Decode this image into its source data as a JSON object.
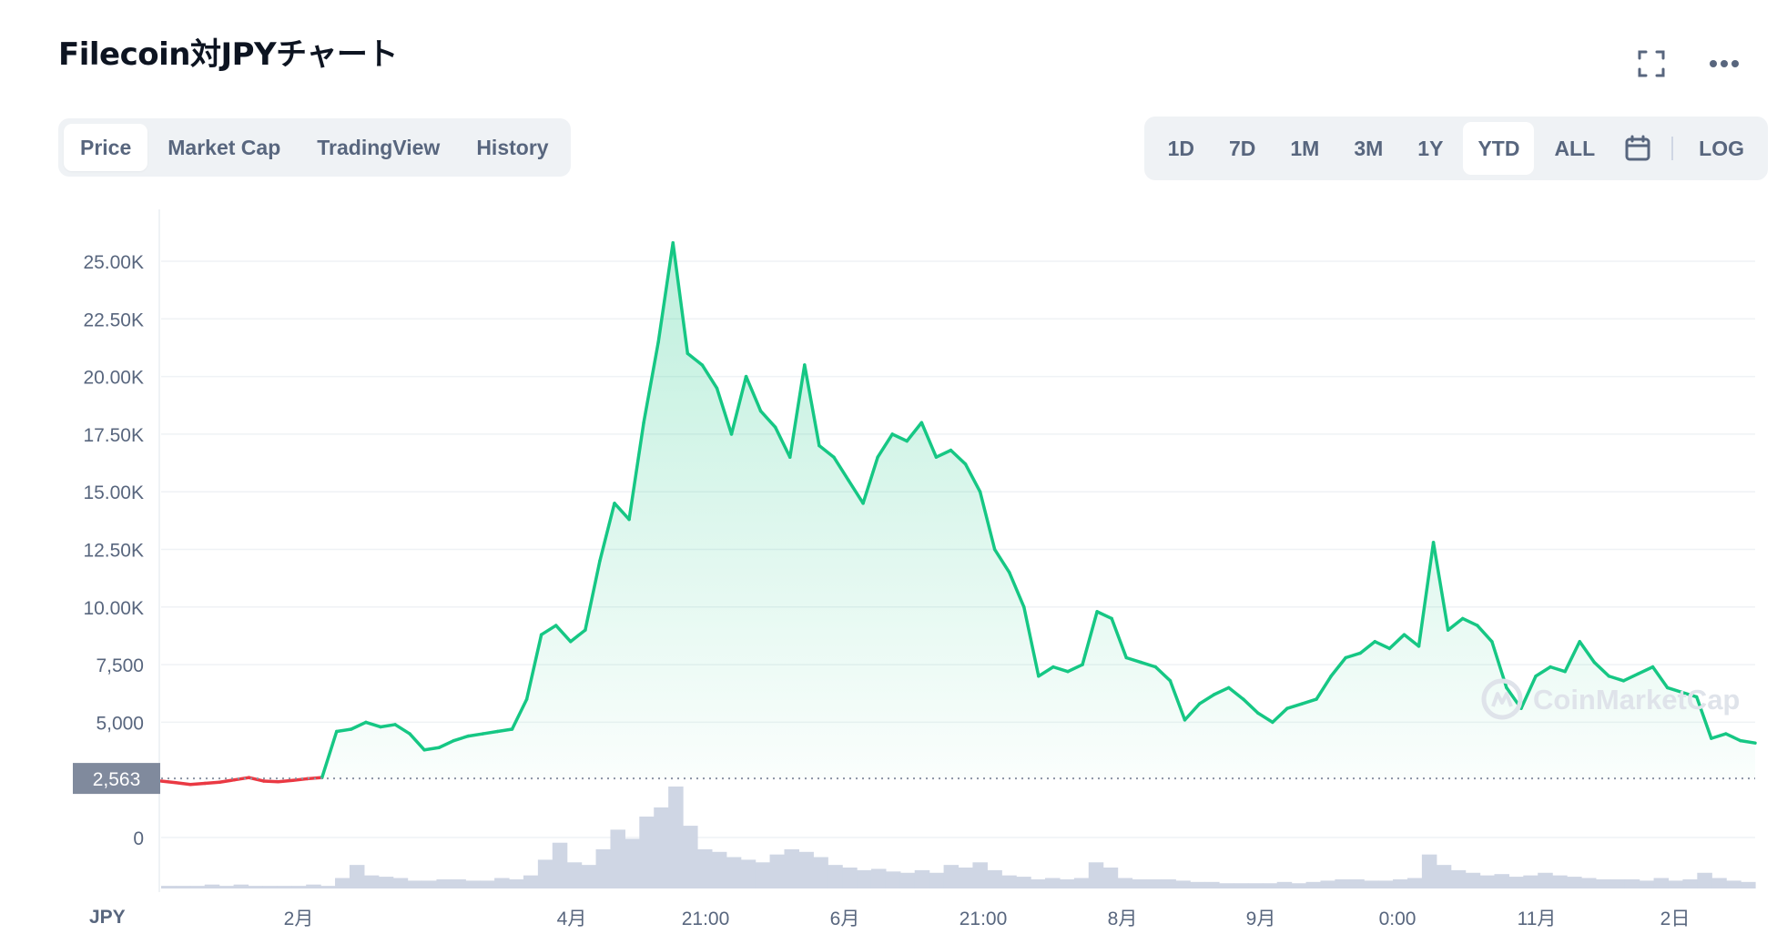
{
  "title": "Filecoin対JPYチャート",
  "icons": {
    "fullscreen": "fullscreen-icon",
    "more": "more-icon",
    "calendar": "calendar-icon"
  },
  "tabs": [
    {
      "label": "Price",
      "active": true
    },
    {
      "label": "Market Cap",
      "active": false
    },
    {
      "label": "TradingView",
      "active": false
    },
    {
      "label": "History",
      "active": false
    }
  ],
  "ranges": [
    {
      "label": "1D",
      "active": false
    },
    {
      "label": "7D",
      "active": false
    },
    {
      "label": "1M",
      "active": false
    },
    {
      "label": "3M",
      "active": false
    },
    {
      "label": "1Y",
      "active": false
    },
    {
      "label": "YTD",
      "active": true
    },
    {
      "label": "ALL",
      "active": false
    }
  ],
  "log_label": "LOG",
  "colors": {
    "up": "#16c784",
    "down": "#ea3943",
    "volume": "#cfd6e4",
    "grid": "#eff2f5",
    "axis_text": "#58667e"
  },
  "watermark": "CoinMarketCap",
  "chart_data": {
    "type": "line",
    "currency": "JPY",
    "reference_price": 2563,
    "reference_label": "2,563",
    "ylim": [
      0,
      27500
    ],
    "yticks": [
      {
        "value": 25000,
        "label": "25.00K"
      },
      {
        "value": 22500,
        "label": "22.50K"
      },
      {
        "value": 20000,
        "label": "20.00K"
      },
      {
        "value": 17500,
        "label": "17.50K"
      },
      {
        "value": 15000,
        "label": "15.00K"
      },
      {
        "value": 12500,
        "label": "12.50K"
      },
      {
        "value": 10000,
        "label": "10.00K"
      },
      {
        "value": 7500,
        "label": "7,500"
      },
      {
        "value": 5000,
        "label": "5,000"
      },
      {
        "value": 0,
        "label": "0"
      }
    ],
    "xticks": [
      "2月",
      "4月",
      "21:00",
      "6月",
      "21:00",
      "8月",
      "9月",
      "0:00",
      "11月",
      "2日"
    ],
    "series": [
      {
        "values": [
          2450,
          2380,
          2300,
          2350,
          2400,
          2500,
          2600,
          2450,
          2420,
          2480,
          2550,
          2600,
          4600,
          4700,
          5000,
          4800,
          4900,
          4500,
          3800,
          3900,
          4200,
          4400,
          4500,
          4600,
          4700,
          6000,
          8800,
          9200,
          8500,
          9000,
          12000,
          14500,
          13800,
          18000,
          21500,
          25800,
          21000,
          20500,
          19500,
          17500,
          20000,
          18500,
          17800,
          16500,
          20500,
          17000,
          16500,
          15500,
          14500,
          16500,
          17500,
          17200,
          18000,
          16500,
          16800,
          16200,
          15000,
          12500,
          11500,
          10000,
          7000,
          7400,
          7200,
          7500,
          9800,
          9500,
          7800,
          7600,
          7400,
          6800,
          5100,
          5800,
          6200,
          6500,
          6000,
          5400,
          5000,
          5600,
          5800,
          6000,
          7000,
          7800,
          8000,
          8500,
          8200,
          8800,
          8300,
          12800,
          9000,
          9500,
          9200,
          8500,
          6500,
          5600,
          7000,
          7400,
          7200,
          8500,
          7600,
          7000,
          6800,
          7100,
          7400,
          6500,
          6300,
          6100,
          4300,
          4500,
          4200,
          4100
        ],
        "color": "#16c784"
      }
    ],
    "volume": [
      2,
      2,
      2,
      3,
      2,
      3,
      2,
      2,
      2,
      2,
      3,
      2,
      8,
      18,
      10,
      9,
      8,
      6,
      6,
      7,
      7,
      6,
      6,
      8,
      7,
      10,
      22,
      35,
      20,
      18,
      30,
      45,
      38,
      55,
      62,
      78,
      48,
      30,
      28,
      24,
      22,
      20,
      26,
      30,
      28,
      24,
      18,
      16,
      14,
      15,
      13,
      12,
      14,
      12,
      18,
      16,
      20,
      14,
      10,
      9,
      7,
      8,
      7,
      8,
      20,
      16,
      8,
      7,
      7,
      7,
      6,
      5,
      5,
      4,
      4,
      4,
      4,
      5,
      4,
      5,
      6,
      7,
      7,
      6,
      6,
      7,
      8,
      26,
      18,
      14,
      12,
      10,
      11,
      9,
      10,
      12,
      10,
      9,
      8,
      7,
      7,
      7,
      6,
      8,
      6,
      7,
      12,
      8,
      6,
      5
    ]
  }
}
